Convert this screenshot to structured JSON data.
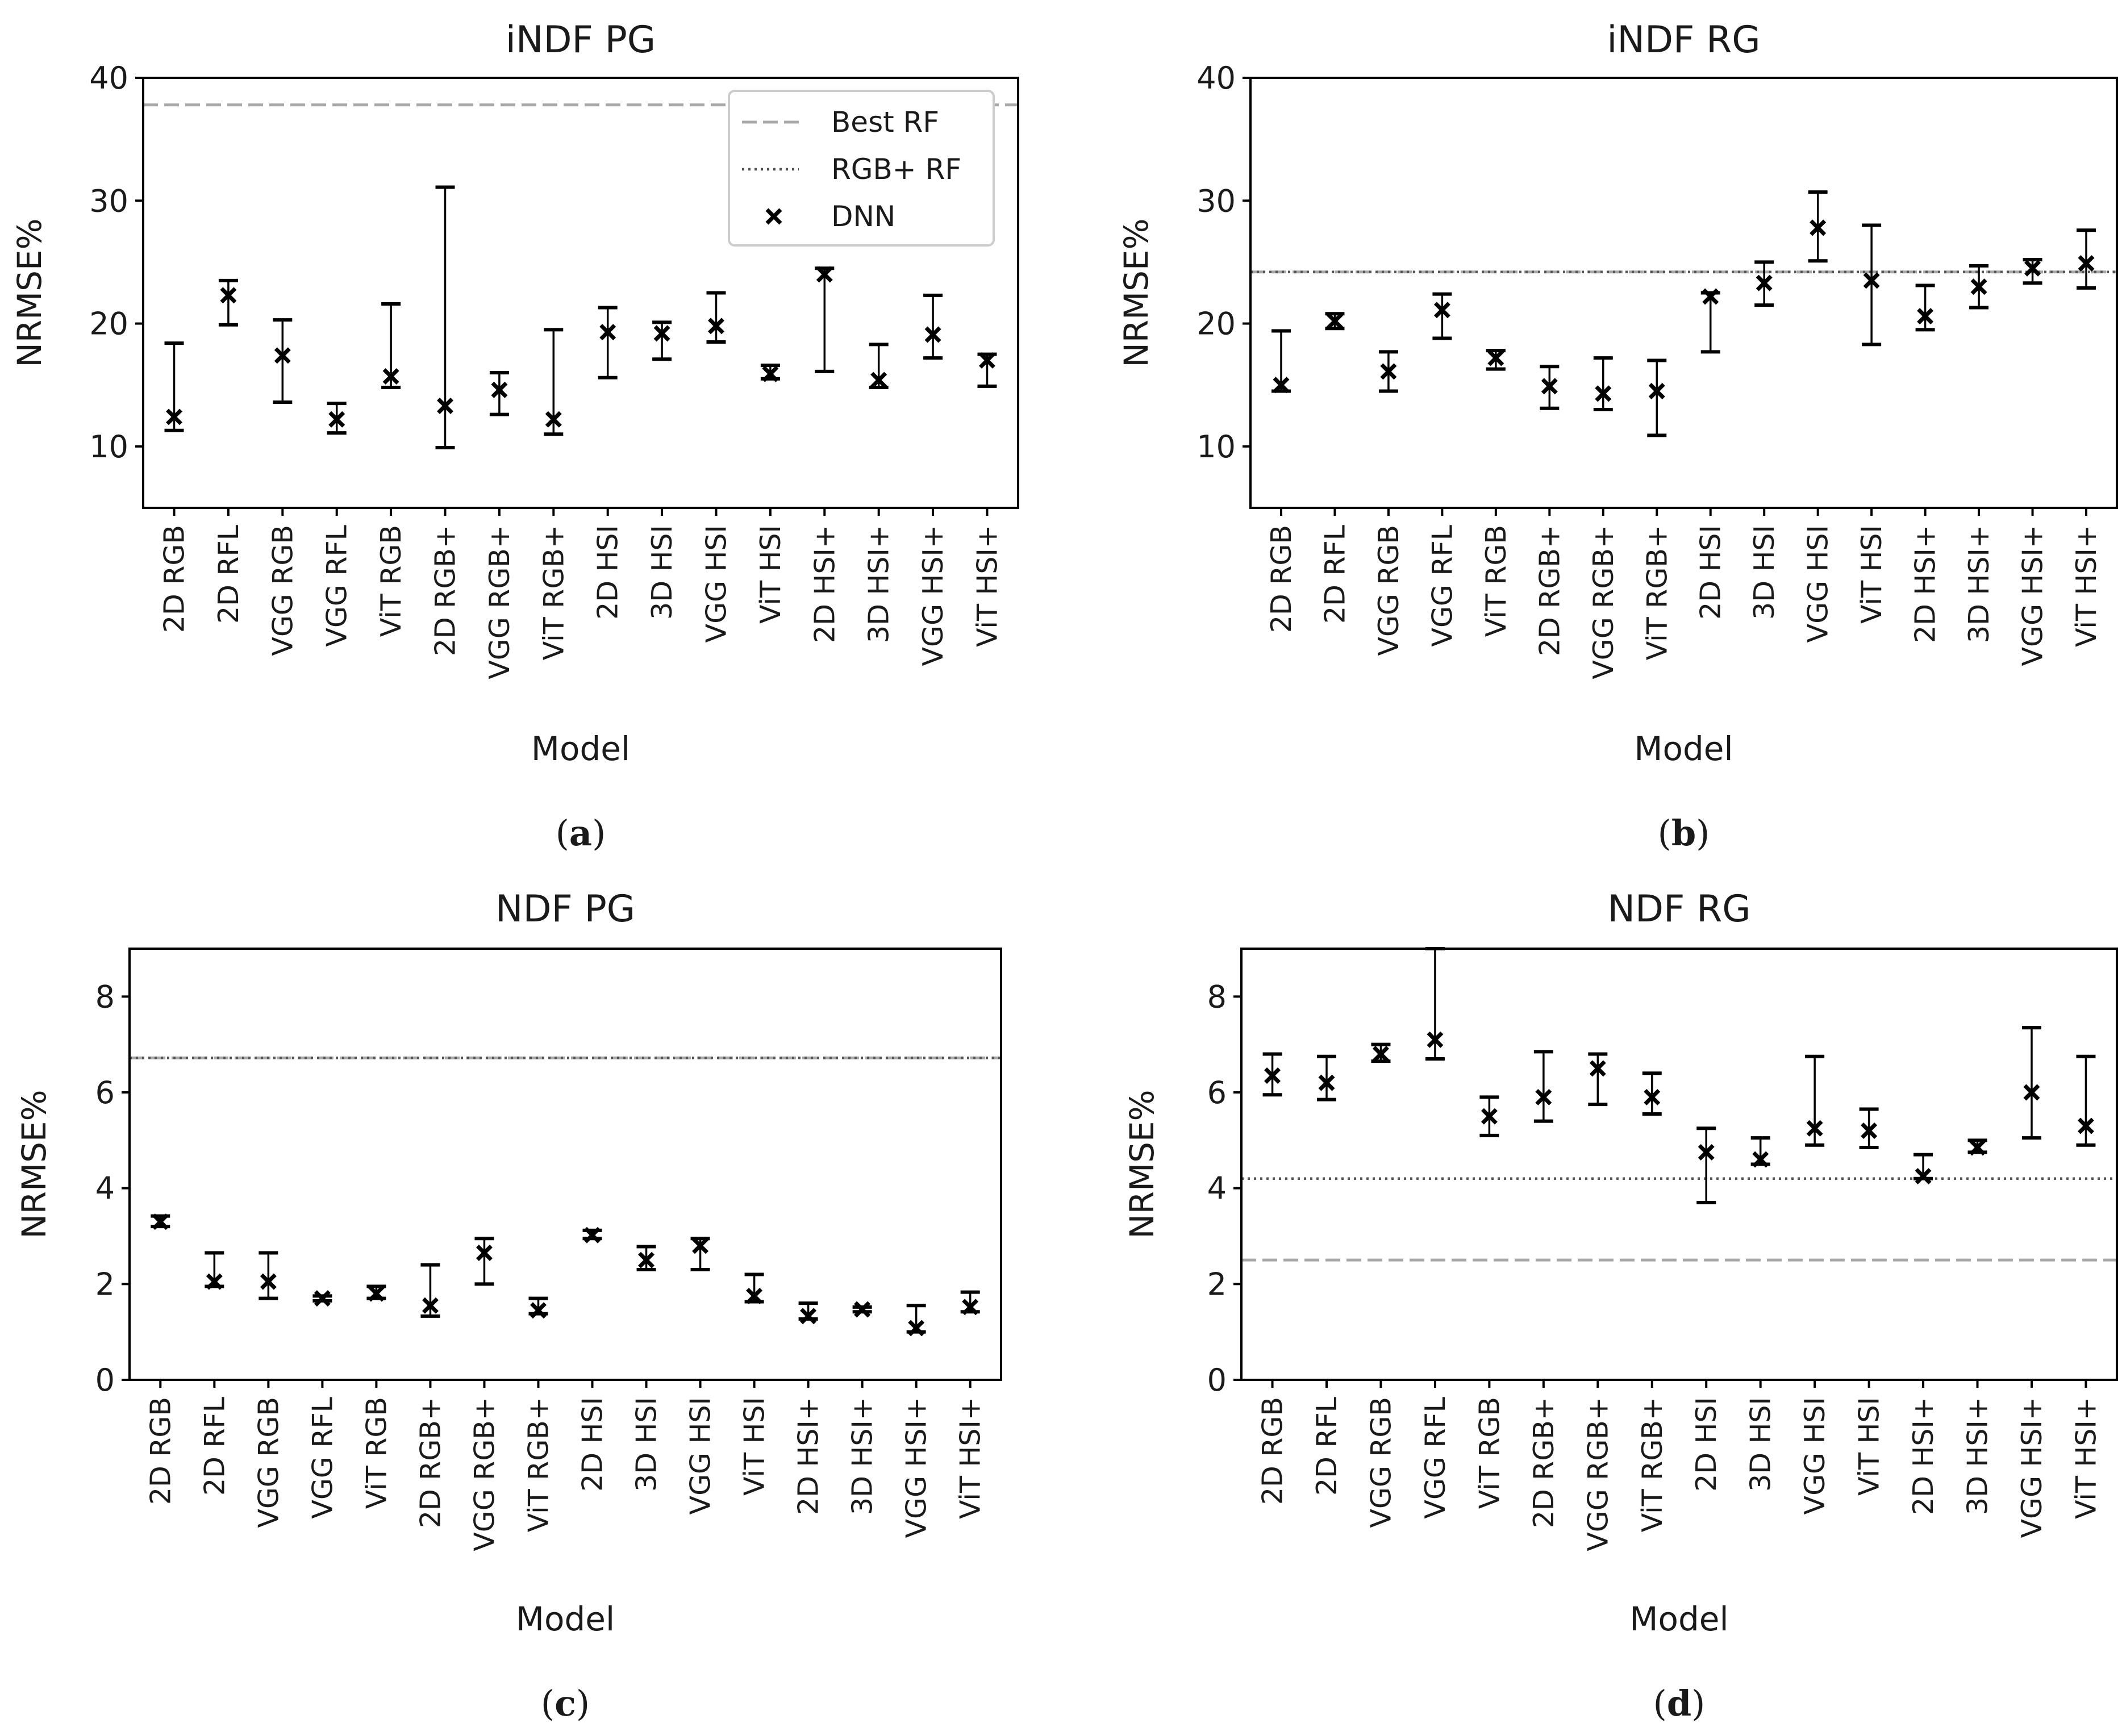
{
  "legend": {
    "best_rf": "Best RF",
    "rgb_rf": "RGB+ RF",
    "dnn": "DNN"
  },
  "chart_data": [
    {
      "type": "errorbar",
      "title": "iNDF PG",
      "caption": "a",
      "xlabel": "Model",
      "ylabel": "NRMSE%",
      "ylim": [
        5,
        40
      ],
      "yticks": [
        10,
        20,
        30,
        40
      ],
      "categories": [
        "2D RGB",
        "2D RFL",
        "VGG RGB",
        "VGG RFL",
        "ViT RGB",
        "2D RGB+",
        "VGG RGB+",
        "ViT RGB+",
        "2D HSI",
        "3D HSI",
        "VGG HSI",
        "ViT HSI",
        "2D HSI+",
        "3D HSI+",
        "VGG HSI+",
        "ViT HSI+"
      ],
      "dnn": [
        12.4,
        22.3,
        17.4,
        12.2,
        15.7,
        13.3,
        14.6,
        12.2,
        19.3,
        19.2,
        19.8,
        15.9,
        24.0,
        15.4,
        19.1,
        17.0
      ],
      "low": [
        11.3,
        19.9,
        13.6,
        11.1,
        14.8,
        9.9,
        12.6,
        11.0,
        15.6,
        17.1,
        18.5,
        15.5,
        16.1,
        14.8,
        17.2,
        14.9
      ],
      "high": [
        18.4,
        23.5,
        20.3,
        13.5,
        21.6,
        31.1,
        16.0,
        19.5,
        21.3,
        20.1,
        22.5,
        16.6,
        24.5,
        18.3,
        22.3,
        17.5
      ],
      "best_rf": 37.8,
      "rgb_rf": null,
      "legend_visible": true
    },
    {
      "type": "errorbar",
      "title": "iNDF RG",
      "caption": "b",
      "xlabel": "Model",
      "ylabel": "NRMSE%",
      "ylim": [
        5,
        40
      ],
      "yticks": [
        10,
        20,
        30,
        40
      ],
      "categories": [
        "2D RGB",
        "2D RFL",
        "VGG RGB",
        "VGG RFL",
        "ViT RGB",
        "2D RGB+",
        "VGG RGB+",
        "ViT RGB+",
        "2D HSI",
        "3D HSI",
        "VGG HSI",
        "ViT HSI",
        "2D HSI+",
        "3D HSI+",
        "VGG HSI+",
        "ViT HSI+"
      ],
      "dnn": [
        15.0,
        20.2,
        16.1,
        21.1,
        17.2,
        14.9,
        14.3,
        14.5,
        22.2,
        23.3,
        27.8,
        23.5,
        20.6,
        23.0,
        24.5,
        24.9
      ],
      "low": [
        14.5,
        19.6,
        14.5,
        18.8,
        16.3,
        13.1,
        13.0,
        10.9,
        17.7,
        21.5,
        25.1,
        18.3,
        19.5,
        21.3,
        23.3,
        22.9
      ],
      "high": [
        19.4,
        20.8,
        17.7,
        22.4,
        17.8,
        16.5,
        17.2,
        17.0,
        22.5,
        25.0,
        30.7,
        28.0,
        23.1,
        24.7,
        25.2,
        27.6
      ],
      "best_rf": 24.2,
      "rgb_rf": 24.2,
      "legend_visible": false
    },
    {
      "type": "errorbar",
      "title": "NDF PG",
      "caption": "c",
      "xlabel": "Model",
      "ylabel": "NRMSE%",
      "ylim": [
        0,
        9
      ],
      "yticks": [
        0,
        2,
        4,
        6,
        8
      ],
      "categories": [
        "2D RGB",
        "2D RFL",
        "VGG RGB",
        "VGG RFL",
        "ViT RGB",
        "2D RGB+",
        "VGG RGB+",
        "ViT RGB+",
        "2D HSI",
        "3D HSI",
        "VGG HSI",
        "ViT HSI",
        "2D HSI+",
        "3D HSI+",
        "VGG HSI+",
        "ViT HSI+"
      ],
      "dnn": [
        3.3,
        2.05,
        2.05,
        1.7,
        1.8,
        1.55,
        2.65,
        1.45,
        3.02,
        2.5,
        2.8,
        1.75,
        1.33,
        1.47,
        1.08,
        1.52
      ],
      "low": [
        3.2,
        1.95,
        1.7,
        1.65,
        1.7,
        1.33,
        2.0,
        1.38,
        2.95,
        2.3,
        2.3,
        1.63,
        1.27,
        1.42,
        1.0,
        1.42
      ],
      "high": [
        3.42,
        2.65,
        2.65,
        1.75,
        1.95,
        2.4,
        2.95,
        1.7,
        3.12,
        2.78,
        2.95,
        2.2,
        1.6,
        1.52,
        1.55,
        1.83
      ],
      "best_rf": 6.72,
      "rgb_rf": 6.72,
      "legend_visible": false
    },
    {
      "type": "errorbar",
      "title": "NDF RG",
      "caption": "d",
      "xlabel": "Model",
      "ylabel": "NRMSE%",
      "ylim": [
        0,
        9
      ],
      "yticks": [
        0,
        2,
        4,
        6,
        8
      ],
      "categories": [
        "2D RGB",
        "2D RFL",
        "VGG RGB",
        "VGG RFL",
        "ViT RGB",
        "2D RGB+",
        "VGG RGB+",
        "ViT RGB+",
        "2D HSI",
        "3D HSI",
        "VGG HSI",
        "ViT HSI",
        "2D HSI+",
        "3D HSI+",
        "VGG HSI+",
        "ViT HSI+"
      ],
      "dnn": [
        6.35,
        6.2,
        6.8,
        7.1,
        5.5,
        5.9,
        6.5,
        5.9,
        4.75,
        4.6,
        5.25,
        5.2,
        4.25,
        4.85,
        6.0,
        5.3
      ],
      "low": [
        5.95,
        5.85,
        6.65,
        6.7,
        5.1,
        5.4,
        5.75,
        5.55,
        3.7,
        4.5,
        4.9,
        4.85,
        4.2,
        4.75,
        5.05,
        4.9
      ],
      "high": [
        6.8,
        6.75,
        7.0,
        9.0,
        5.9,
        6.85,
        6.8,
        6.4,
        5.25,
        5.05,
        6.75,
        5.65,
        4.7,
        5.0,
        7.35,
        6.75
      ],
      "best_rf": 2.5,
      "rgb_rf": 4.2,
      "legend_visible": false
    }
  ]
}
